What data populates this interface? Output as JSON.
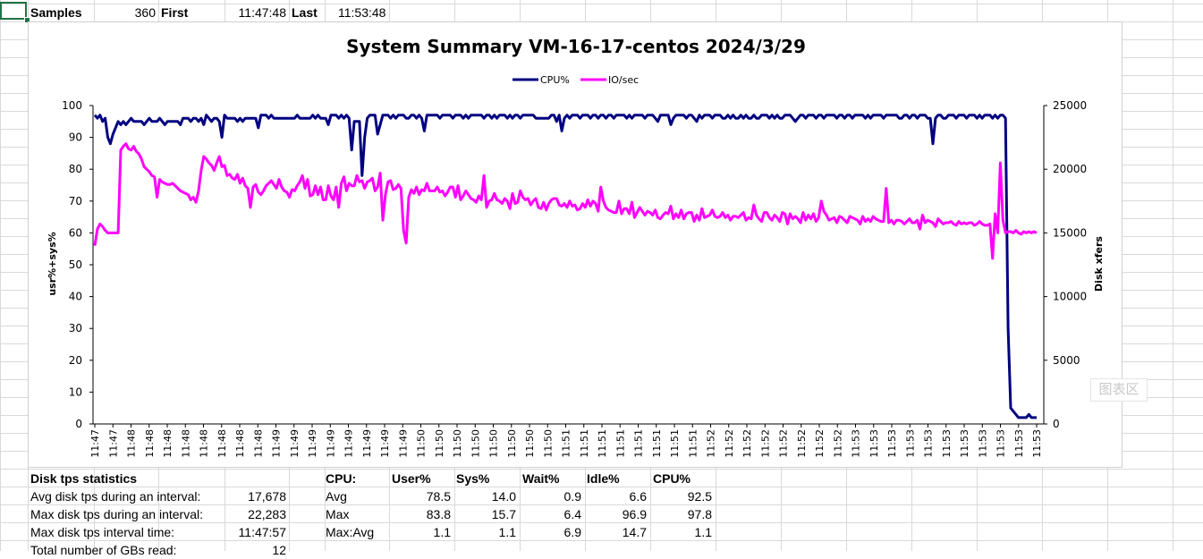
{
  "header_row": {
    "samples_label": "Samples",
    "samples_value": "360",
    "first_label": "First",
    "first_value": "11:47:48",
    "last_label": "Last",
    "last_value": "11:53:48"
  },
  "disk_stats": {
    "title": "Disk tps statistics",
    "rows": [
      {
        "label": "Avg disk tps during an interval:",
        "value": "17,678"
      },
      {
        "label": "Max disk tps during an interval:",
        "value": "22,283"
      },
      {
        "label": "Max disk tps interval time:",
        "value": "11:47:57"
      },
      {
        "label": "Total number of GBs read:",
        "value": "12"
      }
    ]
  },
  "cpu_stats": {
    "headers": [
      "CPU:",
      "User%",
      "Sys%",
      "Wait%",
      "Idle%",
      "CPU%"
    ],
    "rows": [
      {
        "label": "Avg",
        "values": [
          "78.5",
          "14.0",
          "0.9",
          "6.6",
          "92.5"
        ]
      },
      {
        "label": "Max",
        "values": [
          "83.8",
          "15.7",
          "6.4",
          "96.9",
          "97.8"
        ]
      },
      {
        "label": "Max:Avg",
        "values": [
          "1.1",
          "1.1",
          "6.9",
          "14.7",
          "1.1"
        ]
      }
    ]
  },
  "watermark": "图表区",
  "chart_data": {
    "type": "line",
    "title": "System Summary VM-16-17-centos  2024/3/29",
    "ylabel": "usr%+sys%",
    "y2label": "Disk xfers",
    "ylim": [
      0,
      100
    ],
    "y2lim": [
      0,
      25000
    ],
    "yticks": [
      "0",
      "10",
      "20",
      "30",
      "40",
      "50",
      "60",
      "70",
      "80",
      "90",
      "100"
    ],
    "y2ticks": [
      "0",
      "5000",
      "10000",
      "15000",
      "20000",
      "25000"
    ],
    "grid": false,
    "legend_position": "top-center",
    "x_tick_labels": [
      "11:47",
      "11:47",
      "11:48",
      "11:48",
      "11:48",
      "11:48",
      "11:48",
      "11:48",
      "11:48",
      "11:48",
      "11:49",
      "11:49",
      "11:49",
      "11:49",
      "11:49",
      "11:49",
      "11:49",
      "11:49",
      "11:50",
      "11:50",
      "11:50",
      "11:50",
      "11:50",
      "11:50",
      "11:50",
      "11:50",
      "11:51",
      "11:51",
      "11:51",
      "11:51",
      "11:51",
      "11:51",
      "11:51",
      "11:51",
      "11:52",
      "11:52",
      "11:52",
      "11:52",
      "11:52",
      "11:52",
      "11:52",
      "11:52",
      "11:53",
      "11:53",
      "11:53",
      "11:53",
      "11:53",
      "11:53",
      "11:53",
      "11:53",
      "11:53",
      "11:53",
      "11:53"
    ],
    "series": [
      {
        "name": "CPU%",
        "axis": "left",
        "color": "#000080",
        "values": [
          97,
          96,
          97,
          95,
          96,
          90,
          88,
          91,
          93,
          95,
          94,
          95,
          94,
          95,
          96,
          95,
          95,
          95,
          95,
          94,
          95,
          96,
          95,
          95,
          95,
          96,
          95,
          94,
          95,
          95,
          95,
          95,
          95,
          94,
          96,
          96,
          96,
          95,
          96,
          96,
          95,
          96,
          94,
          97,
          96,
          95,
          96,
          96,
          95,
          90,
          97,
          96,
          96,
          96,
          96,
          95,
          96,
          95,
          96,
          96,
          96,
          96,
          96,
          93,
          97,
          97,
          97,
          96,
          97,
          96,
          96,
          96,
          96,
          96,
          96,
          96,
          96,
          96,
          97,
          96,
          96,
          96,
          96,
          96,
          97,
          96,
          97,
          96,
          96,
          96,
          94,
          97,
          97,
          97,
          96,
          97,
          96,
          96,
          96,
          96,
          96,
          96,
          96,
          97,
          97,
          96,
          97,
          97,
          97,
          96,
          97,
          97,
          97,
          97,
          96,
          97,
          96,
          97,
          97,
          97,
          96,
          96,
          97,
          97,
          96,
          97,
          96,
          92,
          97,
          97,
          97,
          97,
          97,
          96,
          97,
          97,
          97,
          97,
          96,
          97,
          97,
          97,
          96,
          97,
          96,
          97,
          97,
          97,
          97,
          97,
          96,
          97,
          97,
          96,
          97,
          96,
          97,
          97,
          97,
          96,
          97,
          96,
          97,
          97,
          96,
          97,
          97,
          97,
          97,
          97,
          96,
          96,
          96,
          96,
          96,
          96,
          97,
          97,
          95,
          97,
          97,
          97,
          97,
          96,
          97,
          97,
          97,
          96,
          97,
          97,
          97,
          96,
          97,
          97,
          96,
          97,
          97,
          96,
          97,
          97,
          96,
          97,
          97,
          97,
          97,
          96,
          97,
          96,
          97,
          97,
          97,
          97,
          96,
          97,
          97,
          97,
          96,
          95,
          97,
          97,
          97,
          97,
          97,
          96,
          97,
          97,
          97,
          97,
          96,
          97,
          97,
          96,
          95,
          97,
          96,
          97,
          97,
          97,
          96,
          97,
          97,
          97,
          96,
          96,
          97,
          96,
          97,
          96,
          96,
          97,
          96,
          97,
          96,
          96,
          97,
          96,
          96,
          97,
          97,
          97,
          96,
          97,
          96,
          97,
          96,
          96,
          97,
          97,
          97,
          96,
          96,
          97,
          97,
          97,
          96,
          97,
          97,
          97,
          96,
          97,
          97,
          96,
          97,
          97,
          97,
          97,
          96,
          97,
          97,
          96,
          97,
          97,
          96,
          97,
          97,
          97,
          97,
          96,
          97,
          96,
          97,
          97,
          97,
          97,
          96,
          97,
          97,
          97,
          97,
          97,
          96,
          96,
          97,
          97,
          96,
          97,
          97,
          96,
          97,
          97,
          97,
          96,
          97,
          97,
          97,
          97,
          97,
          96,
          96,
          97,
          97,
          97,
          96,
          97,
          97,
          97,
          96,
          97,
          97,
          97,
          96,
          97,
          96,
          97,
          97,
          97,
          96,
          97,
          96,
          97,
          97,
          96,
          30,
          5,
          4,
          3,
          2,
          2,
          2,
          2,
          3,
          2,
          2,
          2
        ],
        "overrides": [
          [
            96,
            96
          ],
          [
            97,
            97
          ],
          [
            98,
            96
          ],
          [
            99,
            86
          ],
          [
            100,
            95
          ],
          [
            101,
            95
          ],
          [
            102,
            95
          ],
          [
            103,
            78
          ],
          [
            104,
            90
          ],
          [
            105,
            96
          ],
          [
            109,
            91
          ],
          [
            110,
            94
          ],
          [
            180,
            92
          ],
          [
            181,
            96
          ],
          [
            222,
            94
          ],
          [
            223,
            96
          ],
          [
            270,
            95
          ],
          [
            271,
            96
          ],
          [
            322,
            96
          ],
          [
            323,
            88
          ],
          [
            324,
            96
          ]
        ]
      },
      {
        "name": "IO/sec",
        "axis": "right",
        "color": "#ff00ff",
        "values": [
          14000,
          15300,
          15700,
          15500,
          15200,
          15000,
          15000,
          15000,
          15000,
          15000,
          21500,
          21800,
          22000,
          21600,
          21500,
          21800,
          21400,
          21200,
          20800,
          20200,
          20000,
          19800,
          19500,
          19400,
          19200,
          19200,
          19000,
          18900,
          18800,
          18800,
          18900,
          18700,
          18500,
          18300,
          18200,
          18100,
          18000,
          17600,
          17800,
          17400,
          18300,
          19900,
          21000,
          20800,
          20500,
          20300,
          19900,
          20500,
          21000,
          20200,
          20300,
          19500,
          19600,
          19300,
          19200,
          19600,
          18900,
          19300,
          18700,
          18500,
          17000,
          18600,
          18800,
          18200,
          18600,
          18300,
          18700,
          18900,
          19100,
          18800,
          18500,
          19200,
          18600,
          18300,
          18200,
          17800,
          18400,
          18300,
          18700,
          19000,
          18900,
          18500,
          19200,
          17900,
          18000,
          18700,
          18000,
          18600,
          17600,
          17600,
          18700,
          17900,
          17600,
          18600,
          17000,
          18900,
          19400,
          18300,
          18900,
          18700,
          18700,
          19500,
          19000,
          19100,
          18500,
          19000,
          19100,
          19300,
          18300,
          18600,
          18900,
          18700,
          18600,
          19000,
          19100,
          18400,
          18500,
          18800,
          18500,
          18800,
          18500,
          18400,
          18400,
          18100,
          18600,
          18000,
          18400,
          18300,
          18900,
          18300,
          18300,
          18300,
          18600,
          18200,
          18300,
          17900,
          18200,
          18600,
          18600,
          17800,
          18200,
          17600,
          17900,
          18300,
          18000,
          17700,
          17600,
          17400,
          17900,
          17600,
          17400,
          17000,
          17500,
          17600,
          18100,
          17600,
          17500,
          17300,
          17700,
          17500,
          16900,
          18100,
          17300,
          17400,
          18300,
          17800,
          17600,
          17700,
          17200,
          17500,
          17700,
          17000,
          16900,
          17400,
          16800,
          17300,
          17600,
          17700,
          17700,
          17200,
          17100,
          17300,
          17000,
          17500,
          17100,
          17200,
          16800,
          16900,
          17300,
          17000,
          17600,
          17100,
          17500,
          17300,
          16700,
          16800,
          17500,
          17000,
          16800,
          16700,
          16600,
          16600,
          17500,
          16500,
          16900,
          16900,
          16500,
          17400,
          16200,
          16600,
          17000,
          16700,
          16400,
          16700,
          16600,
          16400,
          16800,
          16200,
          16100,
          16400,
          16600,
          16500,
          17100,
          16100,
          16500,
          16200,
          16800,
          16100,
          16500,
          16600,
          16600,
          15900,
          16400,
          16000,
          16900,
          16200,
          16300,
          16400,
          16800,
          16300,
          16200,
          16300,
          16600,
          16200,
          16400,
          16000,
          16300,
          16300,
          16200,
          16400,
          16600,
          16000,
          16200,
          16100,
          17200,
          16400,
          16100,
          15900,
          16600,
          16600,
          16200,
          16000,
          16400,
          16200,
          15900,
          16600,
          16500,
          15700,
          16500,
          16100,
          16100,
          16100,
          15800,
          16600,
          16000,
          16400,
          16100,
          16500,
          15900,
          16200,
          16200,
          16700,
          16400,
          16000,
          16100,
          16200,
          15800,
          16300,
          16200,
          16000,
          15800,
          16300,
          16200,
          16100,
          16000,
          15700,
          16300,
          15900,
          16100,
          15900,
          16300,
          16100,
          16000,
          15900,
          15900,
          16500,
          15800,
          16000,
          15700,
          16000,
          16000,
          15900,
          15700,
          15900,
          16100,
          15900,
          15800,
          16000,
          15800,
          16400,
          15800,
          16000,
          15900,
          15800,
          15500,
          16100,
          15900,
          15700,
          15800,
          15800,
          15900,
          15700,
          15600,
          15900,
          15700,
          15800,
          15700,
          15800,
          15800,
          15600,
          15700,
          15900,
          15700,
          15600,
          15600,
          15700,
          13000,
          16500,
          15000,
          20500,
          16000,
          15000,
          15100,
          15100,
          15000,
          15200,
          15000,
          14900,
          15100,
          15000,
          15100,
          15000,
          15100,
          15000
        ],
        "overrides": [
          [
            24,
            17800
          ],
          [
            60,
            17000
          ],
          [
            64,
            18000
          ],
          [
            80,
            19500
          ],
          [
            110,
            19700
          ],
          [
            111,
            16000
          ],
          [
            112,
            18000
          ],
          [
            119,
            15200
          ],
          [
            120,
            14200
          ],
          [
            121,
            17800
          ],
          [
            140,
            18700
          ],
          [
            150,
            19500
          ],
          [
            195,
            18600
          ],
          [
            270,
            16300
          ],
          [
            280,
            17500
          ],
          [
            305,
            18500
          ],
          [
            315,
            15800
          ],
          [
            318,
            15300
          ]
        ]
      }
    ]
  }
}
